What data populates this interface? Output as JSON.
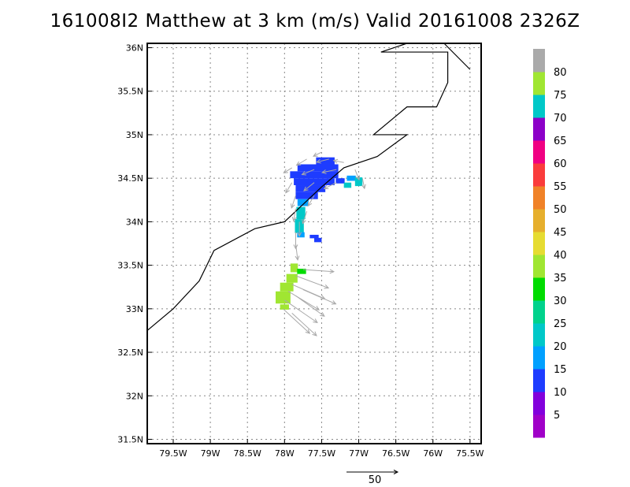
{
  "chart_data": {
    "type": "vector-field-map",
    "title": "161008I2 Matthew at 3 km (m/s) Valid 20161008 2326Z",
    "xlim": [
      -79.85,
      -75.35
    ],
    "ylim": [
      31.45,
      36.05
    ],
    "xticks": [
      {
        "v": -79.5,
        "label": "79.5W"
      },
      {
        "v": -79,
        "label": "79W"
      },
      {
        "v": -78.5,
        "label": "78.5W"
      },
      {
        "v": -78,
        "label": "78W"
      },
      {
        "v": -77.5,
        "label": "77.5W"
      },
      {
        "v": -77,
        "label": "77W"
      },
      {
        "v": -76.5,
        "label": "76.5W"
      },
      {
        "v": -76,
        "label": "76W"
      },
      {
        "v": -75.5,
        "label": "75.5W"
      }
    ],
    "yticks": [
      {
        "v": 31.5,
        "label": "31.5N"
      },
      {
        "v": 32,
        "label": "32N"
      },
      {
        "v": 32.5,
        "label": "32.5N"
      },
      {
        "v": 33,
        "label": "33N"
      },
      {
        "v": 33.5,
        "label": "33.5N"
      },
      {
        "v": 34,
        "label": "34N"
      },
      {
        "v": 34.5,
        "label": "34.5N"
      },
      {
        "v": 35,
        "label": "35N"
      },
      {
        "v": 35.5,
        "label": "35.5N"
      },
      {
        "v": 36,
        "label": "36N"
      }
    ],
    "grid": true,
    "coastline": [
      [
        -79.85,
        32.75
      ],
      [
        -79.5,
        33.0
      ],
      [
        -79.15,
        33.32
      ],
      [
        -78.95,
        33.67
      ],
      [
        -78.4,
        33.92
      ],
      [
        -78.0,
        34.0
      ],
      [
        -77.75,
        34.2
      ],
      [
        -77.5,
        34.4
      ],
      [
        -77.2,
        34.62
      ],
      [
        -76.75,
        34.75
      ],
      [
        -76.35,
        35.0
      ],
      [
        -76.8,
        35.0
      ],
      [
        -76.35,
        35.32
      ],
      [
        -75.95,
        35.32
      ],
      [
        -75.8,
        35.6
      ],
      [
        -75.8,
        35.95
      ],
      [
        -76.3,
        35.95
      ],
      [
        -76.7,
        35.95
      ],
      [
        -76.35,
        36.05
      ]
    ],
    "coastline2": [
      [
        -75.85,
        36.05
      ],
      [
        -75.5,
        35.75
      ]
    ],
    "colorbar": {
      "labels": [
        "5",
        "10",
        "15",
        "20",
        "25",
        "30",
        "35",
        "40",
        "45",
        "50",
        "55",
        "60",
        "65",
        "70",
        "75",
        "80"
      ],
      "colors": [
        "#a000c8",
        "#8200dc",
        "#1e3cff",
        "#00a0ff",
        "#00c8c8",
        "#00d28c",
        "#00dc00",
        "#a0e632",
        "#e6dc32",
        "#e6af2d",
        "#f08228",
        "#fa3c3c",
        "#f00082",
        "#8c00c8",
        "#00c8c8",
        "#a0e632",
        "#aaaaaa"
      ]
    },
    "reference_vector": {
      "label": "50",
      "value": 50
    },
    "cells": [
      {
        "lon": -77.45,
        "lat": 34.7,
        "w": 0.25,
        "h": 0.08,
        "v": 10
      },
      {
        "lon": -77.55,
        "lat": 34.62,
        "w": 0.55,
        "h": 0.08,
        "v": 10
      },
      {
        "lon": -77.6,
        "lat": 34.54,
        "w": 0.65,
        "h": 0.08,
        "v": 10
      },
      {
        "lon": -77.6,
        "lat": 34.46,
        "w": 0.55,
        "h": 0.08,
        "v": 10
      },
      {
        "lon": -77.65,
        "lat": 34.38,
        "w": 0.4,
        "h": 0.08,
        "v": 10
      },
      {
        "lon": -77.7,
        "lat": 34.3,
        "w": 0.3,
        "h": 0.08,
        "v": 10
      },
      {
        "lon": -77.1,
        "lat": 34.5,
        "w": 0.12,
        "h": 0.06,
        "v": 15
      },
      {
        "lon": -77.0,
        "lat": 34.46,
        "w": 0.1,
        "h": 0.1,
        "v": 20
      },
      {
        "lon": -77.25,
        "lat": 34.47,
        "w": 0.12,
        "h": 0.06,
        "v": 10
      },
      {
        "lon": -77.15,
        "lat": 34.42,
        "w": 0.1,
        "h": 0.06,
        "v": 20
      },
      {
        "lon": -77.75,
        "lat": 34.22,
        "w": 0.15,
        "h": 0.08,
        "v": 15
      },
      {
        "lon": -77.78,
        "lat": 34.1,
        "w": 0.12,
        "h": 0.14,
        "v": 20
      },
      {
        "lon": -77.8,
        "lat": 33.95,
        "w": 0.12,
        "h": 0.16,
        "v": 20
      },
      {
        "lon": -77.78,
        "lat": 33.85,
        "w": 0.1,
        "h": 0.06,
        "v": 15
      },
      {
        "lon": -77.6,
        "lat": 33.83,
        "w": 0.12,
        "h": 0.04,
        "v": 10
      },
      {
        "lon": -77.55,
        "lat": 33.79,
        "w": 0.1,
        "h": 0.05,
        "v": 10
      },
      {
        "lon": -77.87,
        "lat": 33.47,
        "w": 0.1,
        "h": 0.1,
        "v": 35
      },
      {
        "lon": -77.77,
        "lat": 33.43,
        "w": 0.12,
        "h": 0.06,
        "v": 30
      },
      {
        "lon": -77.9,
        "lat": 33.35,
        "w": 0.15,
        "h": 0.1,
        "v": 35
      },
      {
        "lon": -77.97,
        "lat": 33.25,
        "w": 0.18,
        "h": 0.1,
        "v": 35
      },
      {
        "lon": -78.02,
        "lat": 33.13,
        "w": 0.2,
        "h": 0.14,
        "v": 35
      },
      {
        "lon": -78.0,
        "lat": 33.02,
        "w": 0.12,
        "h": 0.06,
        "v": 35
      }
    ],
    "vectors": [
      {
        "lon": -77.5,
        "lat": 34.8,
        "u": -8,
        "v": -4
      },
      {
        "lon": -77.7,
        "lat": 34.72,
        "u": -10,
        "v": -6
      },
      {
        "lon": -77.4,
        "lat": 34.72,
        "u": -12,
        "v": -3
      },
      {
        "lon": -77.2,
        "lat": 34.68,
        "u": -10,
        "v": 2
      },
      {
        "lon": -77.9,
        "lat": 34.62,
        "u": -8,
        "v": -5
      },
      {
        "lon": -77.6,
        "lat": 34.6,
        "u": -12,
        "v": -5
      },
      {
        "lon": -77.3,
        "lat": 34.6,
        "u": -14,
        "v": -3
      },
      {
        "lon": -77.05,
        "lat": 34.6,
        "u": 4,
        "v": -10
      },
      {
        "lon": -77.9,
        "lat": 34.45,
        "u": -6,
        "v": -10
      },
      {
        "lon": -77.6,
        "lat": 34.45,
        "u": -10,
        "v": -8
      },
      {
        "lon": -77.3,
        "lat": 34.45,
        "u": -12,
        "v": -6
      },
      {
        "lon": -76.95,
        "lat": 34.5,
        "u": 2,
        "v": -10
      },
      {
        "lon": -77.85,
        "lat": 34.3,
        "u": -4,
        "v": -12
      },
      {
        "lon": -77.6,
        "lat": 34.3,
        "u": -6,
        "v": -10
      },
      {
        "lon": -77.85,
        "lat": 34.15,
        "u": -2,
        "v": -12
      },
      {
        "lon": -77.7,
        "lat": 34.12,
        "u": -4,
        "v": -12
      },
      {
        "lon": -77.8,
        "lat": 34.0,
        "u": 0,
        "v": -14
      },
      {
        "lon": -77.85,
        "lat": 33.88,
        "u": 0,
        "v": -16
      },
      {
        "lon": -77.85,
        "lat": 33.75,
        "u": 2,
        "v": -16
      },
      {
        "lon": -77.75,
        "lat": 33.45,
        "u": 30,
        "v": -2
      },
      {
        "lon": -77.85,
        "lat": 33.38,
        "u": 32,
        "v": -12
      },
      {
        "lon": -77.9,
        "lat": 33.28,
        "u": 32,
        "v": -14
      },
      {
        "lon": -77.95,
        "lat": 33.2,
        "u": 30,
        "v": -18
      },
      {
        "lon": -78.0,
        "lat": 33.1,
        "u": 32,
        "v": -22
      },
      {
        "lon": -78.02,
        "lat": 33.0,
        "u": 26,
        "v": -24
      },
      {
        "lon": -77.85,
        "lat": 33.15,
        "u": 28,
        "v": -20
      },
      {
        "lon": -77.75,
        "lat": 33.22,
        "u": 32,
        "v": -14
      },
      {
        "lon": -77.9,
        "lat": 32.95,
        "u": 24,
        "v": -22
      }
    ]
  }
}
